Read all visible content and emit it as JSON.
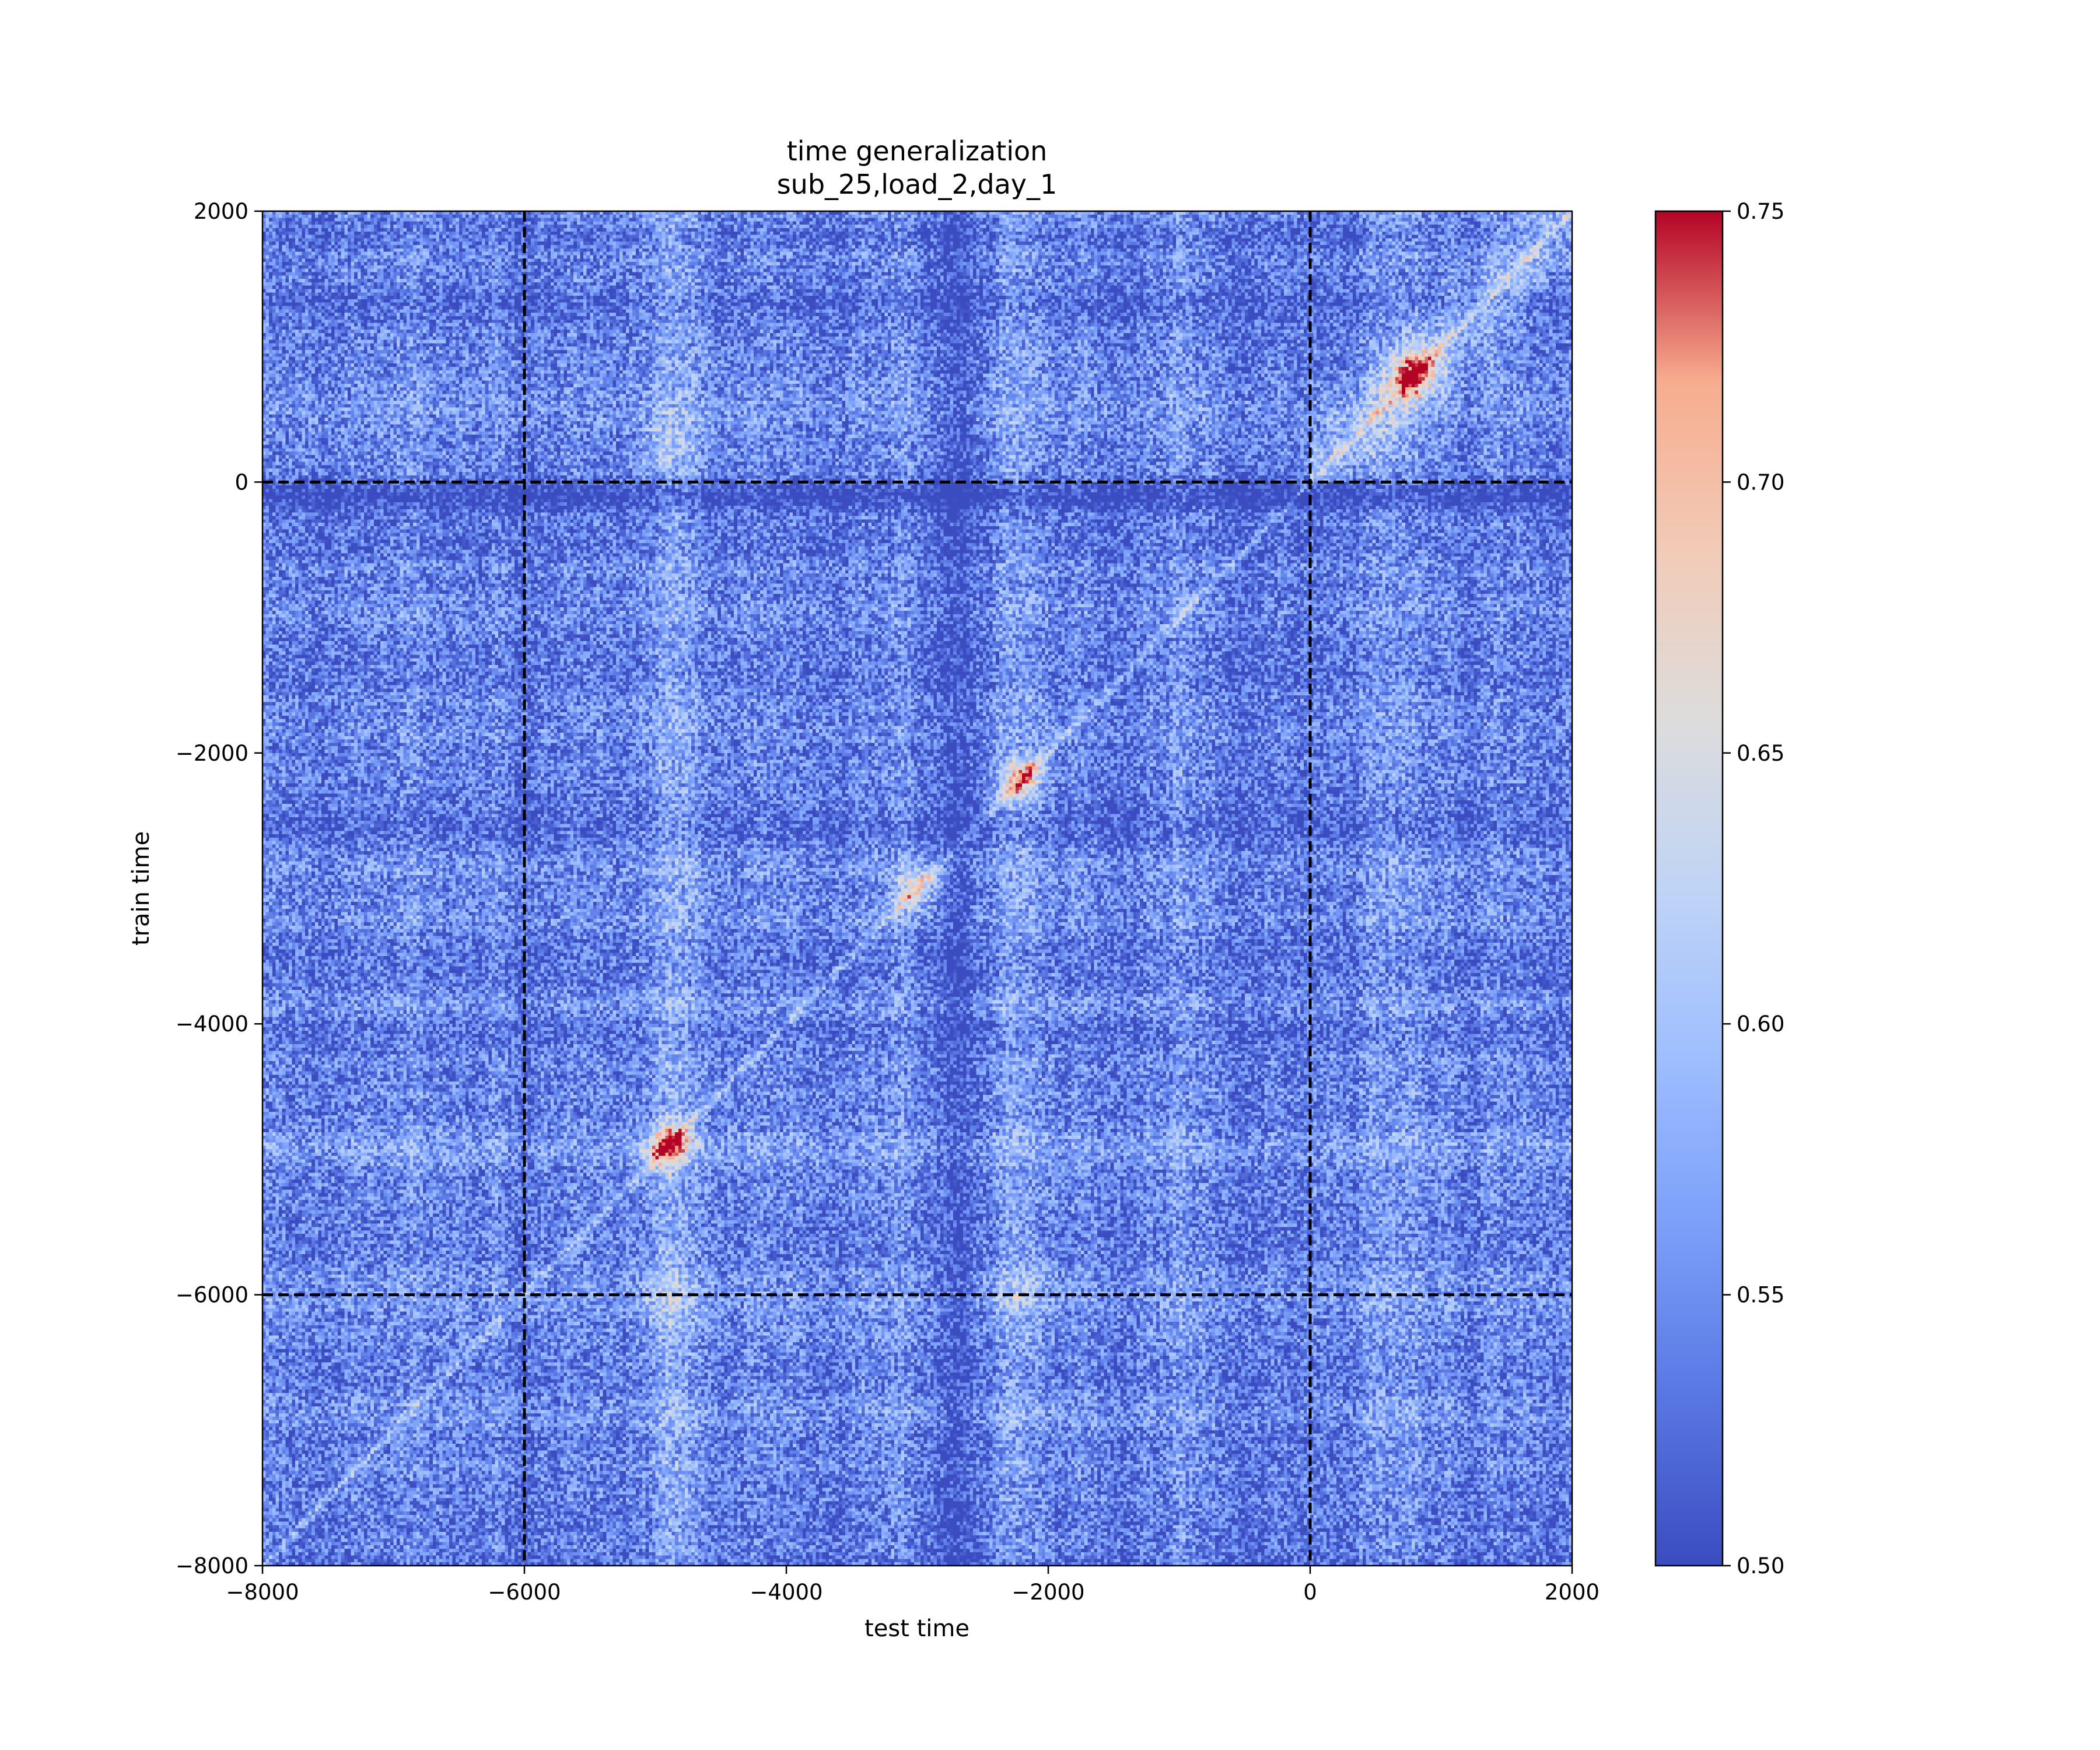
{
  "chart_data": {
    "type": "heatmap",
    "title": "time generalization",
    "subtitle": "sub_25,load_2,day_1",
    "xlabel": "test time",
    "ylabel": "train time",
    "xlim": [
      -8000,
      2000
    ],
    "ylim": [
      -8000,
      2000
    ],
    "xticks": [
      "−8000",
      "−6000",
      "−4000",
      "−2000",
      "0",
      "2000"
    ],
    "yticks": [
      "−8000",
      "−6000",
      "−4000",
      "−2000",
      "0",
      "2000"
    ],
    "xtick_values": [
      -8000,
      -6000,
      -4000,
      -2000,
      0,
      2000
    ],
    "ytick_values": [
      -8000,
      -6000,
      -4000,
      -2000,
      0,
      2000
    ],
    "reference_lines": {
      "x": [
        -6000,
        0
      ],
      "y": [
        -6000,
        0
      ],
      "style": "dashed",
      "color": "#000000"
    },
    "colormap": "coolwarm",
    "colorbar": {
      "vmin": 0.5,
      "vmax": 0.75,
      "ticks": [
        "0.50",
        "0.55",
        "0.60",
        "0.65",
        "0.70",
        "0.75"
      ],
      "tick_values": [
        0.5,
        0.55,
        0.6,
        0.65,
        0.7,
        0.75
      ]
    },
    "value_description": "noisy decoding score; mostly near 0.50–0.60, diagonal (train time = test time) elevated up to 0.75, strongest around 0–1000 and near -5000 and -2200",
    "hotspots": [
      {
        "x": 800,
        "y": 800,
        "value": 0.72
      },
      {
        "x": -4900,
        "y": -4900,
        "value": 0.72
      },
      {
        "x": -2200,
        "y": -2200,
        "value": 0.7
      },
      {
        "x": -3000,
        "y": -3000,
        "value": 0.66
      },
      {
        "x": -4900,
        "y": 300,
        "value": 0.66
      },
      {
        "x": -2200,
        "y": -6000,
        "value": 0.66
      },
      {
        "x": -4900,
        "y": -6000,
        "value": 0.66
      }
    ],
    "grid": false
  }
}
